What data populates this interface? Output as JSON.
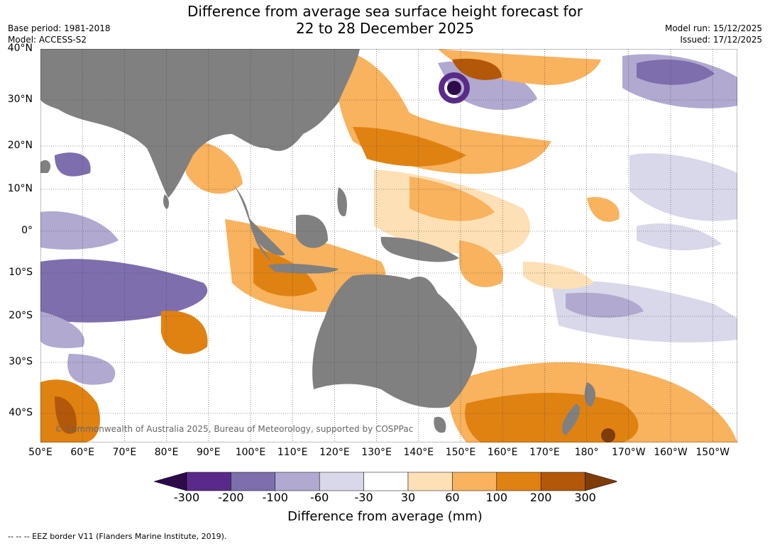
{
  "title": {
    "line1": "Difference from average sea surface height forecast for",
    "line2": "22 to 28 December 2025"
  },
  "meta_left": {
    "base_period": "Base period: 1981-2018",
    "model": "Model: ACCESS-S2"
  },
  "meta_right": {
    "model_run": "Model run: 15/12/2025",
    "issued": "Issued: 17/12/2025"
  },
  "map": {
    "lat_labels": [
      "40°N",
      "30°N",
      "20°N",
      "10°N",
      "0°",
      "10°S",
      "20°S",
      "30°S",
      "40°S"
    ],
    "lon_labels": [
      "50°E",
      "60°E",
      "70°E",
      "80°E",
      "90°E",
      "100°E",
      "110°E",
      "120°E",
      "130°E",
      "140°E",
      "150°E",
      "160°E",
      "170°E",
      "180°",
      "170°W",
      "160°W",
      "150°W"
    ],
    "copyright": "© Commonwealth of Australia 2025, Bureau of Meteorology, supported by COSPPac",
    "colors": {
      "land": "#808080",
      "ocean_neutral": "#ffffff"
    }
  },
  "colorbar": {
    "ticks": [
      "-300",
      "-200",
      "-100",
      "-60",
      "-30",
      "30",
      "60",
      "100",
      "200",
      "300"
    ],
    "colors": [
      "#2d0a4a",
      "#5a2a8a",
      "#7e6eae",
      "#b1a9d0",
      "#d8d8ea",
      "#ffffff",
      "#fde0b5",
      "#f9b25d",
      "#e08212",
      "#b35808",
      "#7f3b08"
    ],
    "label": "Difference from average (mm)"
  },
  "footnote": "--  --  -- EEZ border V11 (Flanders Marine Institute, 2019)."
}
